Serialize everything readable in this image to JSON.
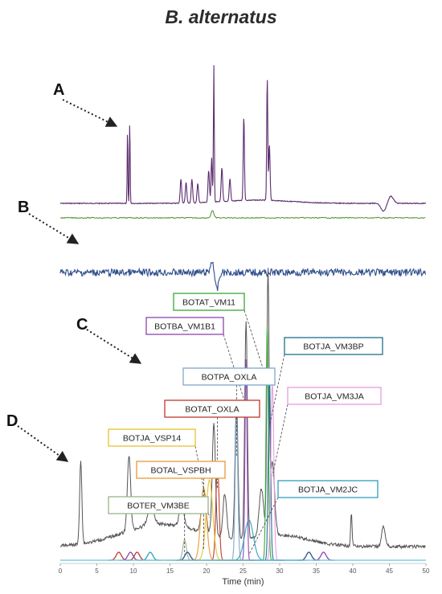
{
  "title": "B. alternatus",
  "panels": [
    {
      "letter": "A"
    },
    {
      "letter": "B"
    },
    {
      "letter": "C"
    },
    {
      "letter": "D"
    }
  ],
  "colors": {
    "trace_a": "#5b2c6f",
    "trace_green": "#4f8a2b",
    "trace_b": "#2f4e8c",
    "trace_d": "#555555"
  },
  "chart_data": {
    "type": "line",
    "xlabel": "Time (min)",
    "xlim": [
      0,
      50
    ],
    "x_ticks": [
      0,
      5,
      10,
      15,
      20,
      25,
      30,
      35,
      40,
      45,
      50
    ],
    "annotations": [
      {
        "label": "BOTAT_VM11",
        "color": "#3aa63a",
        "target_x": 28.3
      },
      {
        "label": "BOTBA_VM1B1",
        "color": "#8e44ad",
        "target_x": 25.4
      },
      {
        "label": "BOTJA_VM3BP",
        "color": "#1f6f8b",
        "target_x": 28.6
      },
      {
        "label": "BOTPA_OXLA",
        "color": "#7fa7c9",
        "target_x": 24.1
      },
      {
        "label": "BOTJA_VM3JA",
        "color": "#e79be0",
        "target_x": 29.0
      },
      {
        "label": "BOTAT_OXLA",
        "color": "#c0392b",
        "target_x": 21.5
      },
      {
        "label": "BOTJA_VSP14",
        "color": "#e6c229",
        "target_x": 20.4
      },
      {
        "label": "BOTAL_VSPBH",
        "color": "#e69a3a",
        "target_x": 19.6
      },
      {
        "label": "BOTJA_VM2JC",
        "color": "#2e9fc1",
        "target_x": 25.8
      },
      {
        "label": "BOTER_VM3BE",
        "color": "#9bb38a",
        "target_x": 17.0
      }
    ]
  }
}
